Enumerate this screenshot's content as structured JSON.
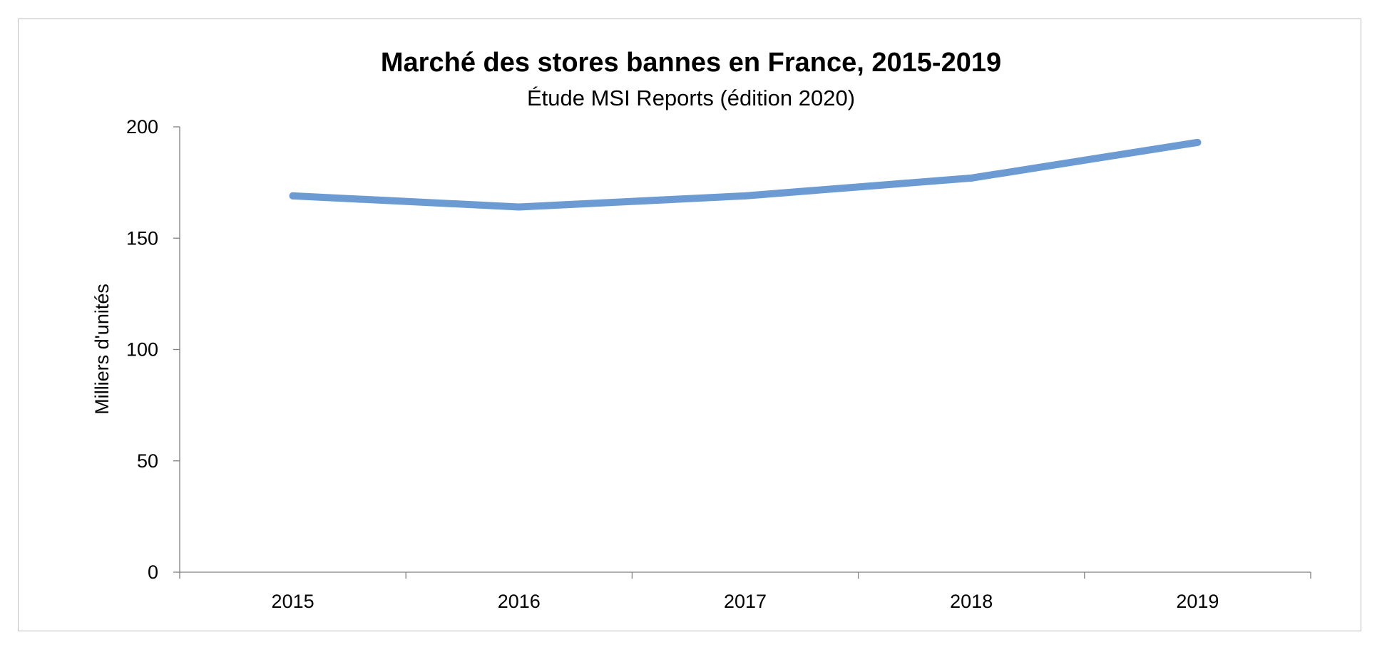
{
  "chart_data": {
    "type": "line",
    "title": "Marché des stores bannes en France, 2015-2019",
    "subtitle": "Étude MSI Reports (édition 2020)",
    "xlabel": "",
    "ylabel": "Milliers d'unités",
    "categories": [
      "2015",
      "2016",
      "2017",
      "2018",
      "2019"
    ],
    "series": [
      {
        "name": "Milliers d'unités",
        "values": [
          169,
          164,
          169,
          177,
          193
        ],
        "color": "#6b9bd2"
      }
    ],
    "ylim": [
      0,
      200
    ],
    "yticks": [
      "0",
      "50",
      "100",
      "150",
      "200"
    ],
    "grid": false,
    "legend": "none"
  }
}
